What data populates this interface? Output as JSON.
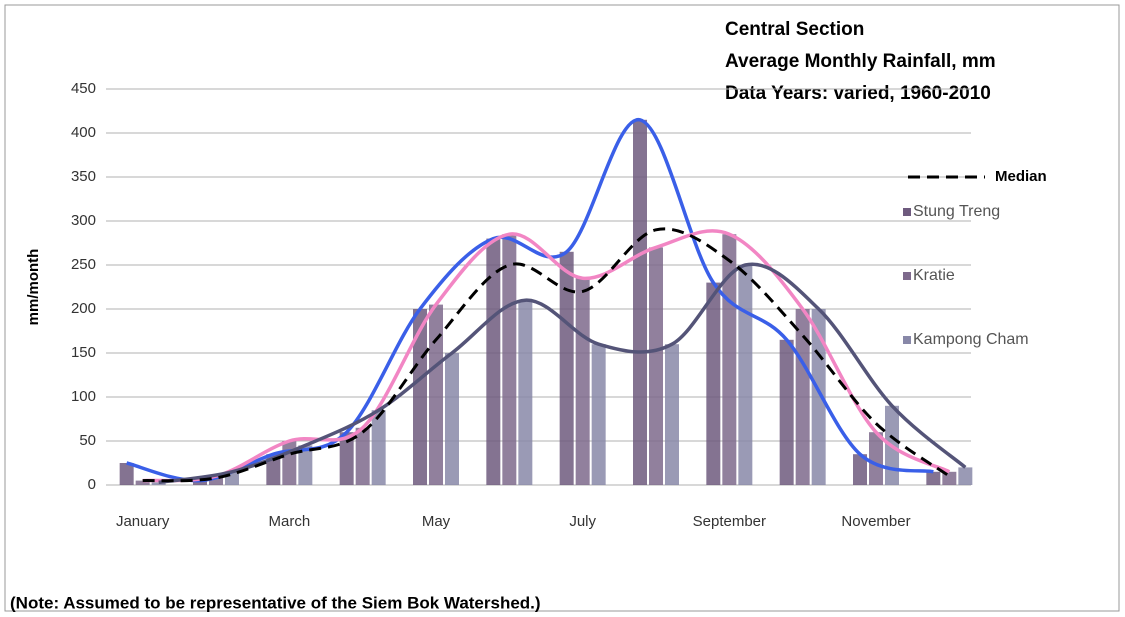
{
  "chart_data": {
    "type": "bar",
    "title": [
      "Central Section",
      "Average Monthly Rainfall, mm",
      "Data Years: varied, 1960-2010"
    ],
    "y_label": "mm/month",
    "note": "(Note: Assumed to be representative of the Siem Bok Watershed.)",
    "categories": [
      "January",
      null,
      "March",
      null,
      "May",
      null,
      "July",
      null,
      "September",
      null,
      "November",
      null
    ],
    "ylim": [
      0,
      450
    ],
    "yticks": [
      0,
      50,
      100,
      150,
      200,
      250,
      300,
      350,
      400,
      450
    ],
    "grid": true,
    "series": [
      {
        "name": "Median",
        "type": "line",
        "color": "#000000",
        "dashed": true,
        "values": [
          5,
          8,
          35,
          60,
          165,
          250,
          220,
          290,
          255,
          170,
          70,
          10
        ]
      },
      {
        "name": "Stung Treng",
        "color": "#6e5a7e",
        "line_color": "#3a5fe8",
        "values": [
          25,
          5,
          35,
          60,
          200,
          280,
          265,
          415,
          230,
          165,
          35,
          15
        ]
      },
      {
        "name": "Kratie",
        "color": "#7e6a8c",
        "line_color": "#f286c4",
        "values": [
          5,
          10,
          50,
          65,
          205,
          285,
          235,
          270,
          285,
          200,
          60,
          15
        ]
      },
      {
        "name": "Kampong Cham",
        "color": "#8888a8",
        "line_color": "#545478",
        "values": [
          3,
          15,
          45,
          85,
          150,
          210,
          160,
          160,
          250,
          200,
          90,
          20
        ]
      }
    ]
  }
}
